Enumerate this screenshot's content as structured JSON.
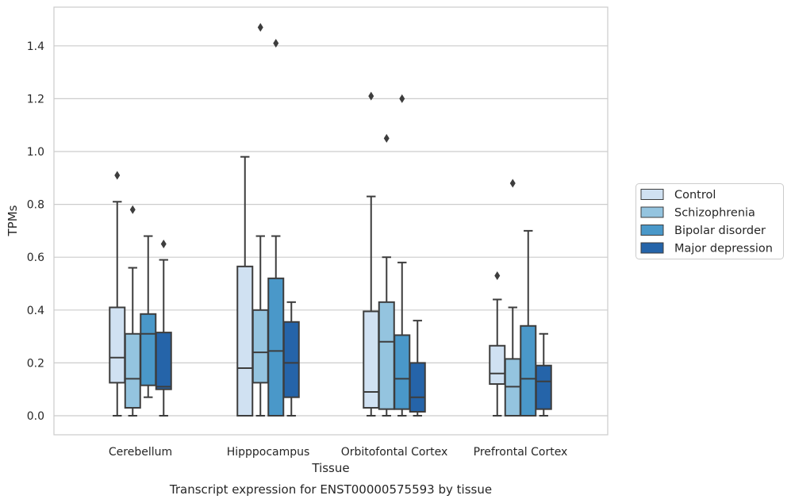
{
  "chart_data": {
    "type": "box",
    "xlabel": "Tissue",
    "ylabel": "TPMs",
    "caption": "Transcript expression for ENST00000575593 by tissue",
    "ylim": [
      -0.07,
      1.55
    ],
    "yticks": [
      "0.0",
      "0.2",
      "0.4",
      "0.6",
      "0.8",
      "1.0",
      "1.2",
      "1.4"
    ],
    "grid": true,
    "legend_position": "right",
    "categories": [
      "Cerebellum",
      "Hipppocampus",
      "Orbitofontal Cortex",
      "Prefrontal Cortex"
    ],
    "series": [
      {
        "name": "Control",
        "color": "#d0e1f2",
        "boxes": [
          {
            "whislo": 0.0,
            "q1": 0.125,
            "med": 0.22,
            "q3": 0.41,
            "whishi": 0.81,
            "fliers": [
              0.91
            ]
          },
          {
            "whislo": 0.0,
            "q1": 0.0,
            "med": 0.18,
            "q3": 0.565,
            "whishi": 0.98,
            "fliers": []
          },
          {
            "whislo": 0.0,
            "q1": 0.03,
            "med": 0.09,
            "q3": 0.395,
            "whishi": 0.83,
            "fliers": [
              1.21
            ]
          },
          {
            "whislo": 0.0,
            "q1": 0.12,
            "med": 0.16,
            "q3": 0.265,
            "whishi": 0.44,
            "fliers": [
              0.53
            ]
          }
        ]
      },
      {
        "name": "Schizophrenia",
        "color": "#94c4df",
        "boxes": [
          {
            "whislo": 0.0,
            "q1": 0.03,
            "med": 0.14,
            "q3": 0.31,
            "whishi": 0.56,
            "fliers": [
              0.78
            ]
          },
          {
            "whislo": 0.0,
            "q1": 0.125,
            "med": 0.24,
            "q3": 0.4,
            "whishi": 0.68,
            "fliers": [
              1.47
            ]
          },
          {
            "whislo": 0.0,
            "q1": 0.025,
            "med": 0.28,
            "q3": 0.43,
            "whishi": 0.6,
            "fliers": [
              1.05
            ]
          },
          {
            "whislo": 0.0,
            "q1": 0.0,
            "med": 0.11,
            "q3": 0.215,
            "whishi": 0.41,
            "fliers": [
              0.88
            ]
          }
        ]
      },
      {
        "name": "Bipolar disorder",
        "color": "#4a98c9",
        "boxes": [
          {
            "whislo": 0.07,
            "q1": 0.115,
            "med": 0.31,
            "q3": 0.385,
            "whishi": 0.68,
            "fliers": []
          },
          {
            "whislo": 0.0,
            "q1": 0.0,
            "med": 0.245,
            "q3": 0.52,
            "whishi": 0.68,
            "fliers": [
              1.41
            ]
          },
          {
            "whislo": 0.0,
            "q1": 0.025,
            "med": 0.14,
            "q3": 0.305,
            "whishi": 0.58,
            "fliers": [
              1.2
            ]
          },
          {
            "whislo": 0.0,
            "q1": 0.0,
            "med": 0.14,
            "q3": 0.34,
            "whishi": 0.7,
            "fliers": []
          }
        ]
      },
      {
        "name": "Major depression",
        "color": "#2564a9",
        "boxes": [
          {
            "whislo": 0.0,
            "q1": 0.1,
            "med": 0.11,
            "q3": 0.315,
            "whishi": 0.59,
            "fliers": [
              0.65
            ]
          },
          {
            "whislo": 0.0,
            "q1": 0.07,
            "med": 0.2,
            "q3": 0.355,
            "whishi": 0.43,
            "fliers": []
          },
          {
            "whislo": 0.0,
            "q1": 0.015,
            "med": 0.07,
            "q3": 0.2,
            "whishi": 0.36,
            "fliers": []
          },
          {
            "whislo": 0.0,
            "q1": 0.025,
            "med": 0.13,
            "q3": 0.19,
            "whishi": 0.31,
            "fliers": []
          }
        ]
      }
    ]
  }
}
